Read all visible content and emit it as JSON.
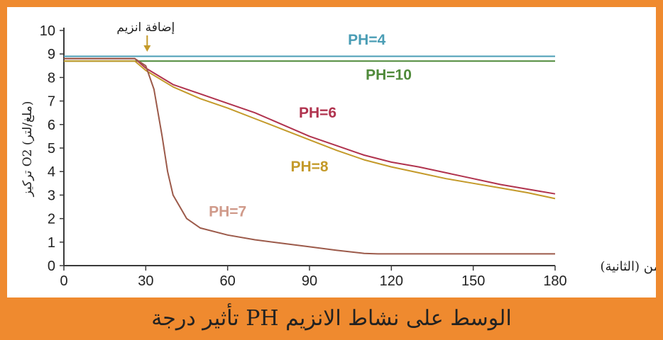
{
  "caption": "تأثير درجة PH الوسط على نشاط الانزيم",
  "colors": {
    "background": "#ef8a2f",
    "axis": "#3a3a3a",
    "PH=4": "#4a9db5",
    "PH=10": "#4f8a3a",
    "PH=6": "#b0334e",
    "PH=8": "#c49a2a",
    "PH=7": "#9c5a4a"
  },
  "chart_data": {
    "type": "line",
    "title": "",
    "xlabel": "الزمن (الثانية)",
    "ylabel": "تركيز O2 (ملغ/لتر)",
    "xlim": [
      0,
      180
    ],
    "ylim": [
      0,
      10
    ],
    "xticks": [
      0,
      30,
      60,
      90,
      120,
      150,
      180
    ],
    "yticks": [
      0,
      1,
      2,
      3,
      4,
      5,
      6,
      7,
      8,
      9,
      10
    ],
    "grid": false,
    "annotation": {
      "text": "إضافة انزيم",
      "x": 30
    },
    "series": [
      {
        "name": "PH=4",
        "x": [
          0,
          180
        ],
        "y": [
          8.9,
          8.9
        ]
      },
      {
        "name": "PH=10",
        "x": [
          0,
          180
        ],
        "y": [
          8.7,
          8.7
        ]
      },
      {
        "name": "PH=6",
        "x": [
          0,
          26,
          30,
          40,
          50,
          60,
          70,
          80,
          90,
          100,
          110,
          120,
          130,
          140,
          150,
          160,
          170,
          180
        ],
        "y": [
          8.8,
          8.8,
          8.4,
          7.7,
          7.3,
          6.9,
          6.5,
          6.0,
          5.5,
          5.1,
          4.7,
          4.4,
          4.2,
          3.95,
          3.7,
          3.45,
          3.25,
          3.05
        ]
      },
      {
        "name": "PH=8",
        "x": [
          0,
          26,
          30,
          40,
          50,
          60,
          70,
          80,
          90,
          100,
          110,
          120,
          130,
          140,
          150,
          160,
          170,
          180
        ],
        "y": [
          8.7,
          8.7,
          8.3,
          7.6,
          7.1,
          6.7,
          6.25,
          5.8,
          5.35,
          4.9,
          4.5,
          4.2,
          3.95,
          3.7,
          3.5,
          3.3,
          3.1,
          2.85
        ]
      },
      {
        "name": "PH=7",
        "x": [
          0,
          26,
          30,
          33,
          36,
          38,
          40,
          45,
          50,
          60,
          70,
          80,
          90,
          100,
          110,
          115,
          120,
          140,
          160,
          180
        ],
        "y": [
          8.8,
          8.8,
          8.5,
          7.5,
          5.5,
          4.0,
          3.0,
          2.0,
          1.6,
          1.3,
          1.1,
          0.95,
          0.8,
          0.65,
          0.52,
          0.5,
          0.5,
          0.5,
          0.5,
          0.5
        ]
      }
    ],
    "series_labels": [
      "PH=4",
      "PH=10",
      "PH=6",
      "PH=8",
      "PH=7"
    ]
  }
}
